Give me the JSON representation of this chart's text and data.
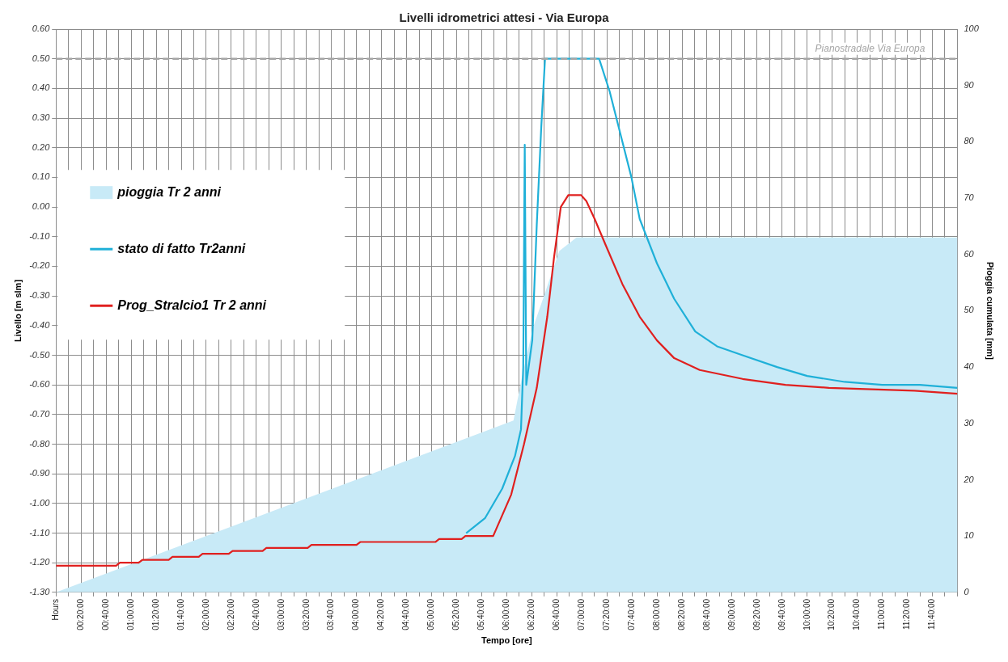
{
  "chart_data": {
    "type": "line",
    "title": "Livelli idrometrici attesi - Via Europa",
    "xlabel": "Tempo [ore]",
    "ylabel": "Livello [m slm]",
    "y2label": "Pioggia cumulata [mm]",
    "xlim": [
      0,
      12
    ],
    "xticks": [
      {
        "value": 0,
        "label": "Hours"
      },
      {
        "value": 0.1667,
        "label": null
      },
      {
        "value": 0.3333,
        "label": "00:20:00"
      },
      {
        "value": 0.5,
        "label": null
      },
      {
        "value": 0.6667,
        "label": "00:40:00"
      },
      {
        "value": 0.8333,
        "label": null
      },
      {
        "value": 1,
        "label": "01:00:00"
      },
      {
        "value": 1.1667,
        "label": null
      },
      {
        "value": 1.3333,
        "label": "01:20:00"
      },
      {
        "value": 1.5,
        "label": null
      },
      {
        "value": 1.6667,
        "label": "01:40:00"
      },
      {
        "value": 1.8333,
        "label": null
      },
      {
        "value": 2,
        "label": "02:00:00"
      },
      {
        "value": 2.1667,
        "label": null
      },
      {
        "value": 2.3333,
        "label": "02:20:00"
      },
      {
        "value": 2.5,
        "label": null
      },
      {
        "value": 2.6667,
        "label": "02:40:00"
      },
      {
        "value": 2.8333,
        "label": null
      },
      {
        "value": 3,
        "label": "03:00:00"
      },
      {
        "value": 3.1667,
        "label": null
      },
      {
        "value": 3.3333,
        "label": "03:20:00"
      },
      {
        "value": 3.5,
        "label": null
      },
      {
        "value": 3.6667,
        "label": "03:40:00"
      },
      {
        "value": 3.8333,
        "label": null
      },
      {
        "value": 4,
        "label": "04:00:00"
      },
      {
        "value": 4.1667,
        "label": null
      },
      {
        "value": 4.3333,
        "label": "04:20:00"
      },
      {
        "value": 4.5,
        "label": null
      },
      {
        "value": 4.6667,
        "label": "04:40:00"
      },
      {
        "value": 4.8333,
        "label": null
      },
      {
        "value": 5,
        "label": "05:00:00"
      },
      {
        "value": 5.1667,
        "label": null
      },
      {
        "value": 5.3333,
        "label": "05:20:00"
      },
      {
        "value": 5.5,
        "label": null
      },
      {
        "value": 5.6667,
        "label": "05:40:00"
      },
      {
        "value": 5.8333,
        "label": null
      },
      {
        "value": 6,
        "label": "06:00:00"
      },
      {
        "value": 6.1667,
        "label": null
      },
      {
        "value": 6.3333,
        "label": "06:20:00"
      },
      {
        "value": 6.5,
        "label": null
      },
      {
        "value": 6.6667,
        "label": "06:40:00"
      },
      {
        "value": 6.8333,
        "label": null
      },
      {
        "value": 7,
        "label": "07:00:00"
      },
      {
        "value": 7.1667,
        "label": null
      },
      {
        "value": 7.3333,
        "label": "07:20:00"
      },
      {
        "value": 7.5,
        "label": null
      },
      {
        "value": 7.6667,
        "label": "07:40:00"
      },
      {
        "value": 7.8333,
        "label": null
      },
      {
        "value": 8,
        "label": "08:00:00"
      },
      {
        "value": 8.1667,
        "label": null
      },
      {
        "value": 8.3333,
        "label": "08:20:00"
      },
      {
        "value": 8.5,
        "label": null
      },
      {
        "value": 8.6667,
        "label": "08:40:00"
      },
      {
        "value": 8.8333,
        "label": null
      },
      {
        "value": 9,
        "label": "09:00:00"
      },
      {
        "value": 9.1667,
        "label": null
      },
      {
        "value": 9.3333,
        "label": "09:20:00"
      },
      {
        "value": 9.5,
        "label": null
      },
      {
        "value": 9.6667,
        "label": "09:40:00"
      },
      {
        "value": 9.8333,
        "label": null
      },
      {
        "value": 10,
        "label": "10:00:00"
      },
      {
        "value": 10.1667,
        "label": null
      },
      {
        "value": 10.3333,
        "label": "10:20:00"
      },
      {
        "value": 10.5,
        "label": null
      },
      {
        "value": 10.6667,
        "label": "10:40:00"
      },
      {
        "value": 10.8333,
        "label": null
      },
      {
        "value": 11,
        "label": "11:00:00"
      },
      {
        "value": 11.1667,
        "label": null
      },
      {
        "value": 11.3333,
        "label": "11:20:00"
      },
      {
        "value": 11.5,
        "label": null
      },
      {
        "value": 11.6667,
        "label": "11:40:00"
      },
      {
        "value": 11.8333,
        "label": null
      },
      {
        "value": 12,
        "label": null
      }
    ],
    "ylim": [
      -1.3,
      0.6
    ],
    "yticks": [
      {
        "value": -1.3,
        "label": "-1.30"
      },
      {
        "value": -1.2,
        "label": "-1.20"
      },
      {
        "value": -1.1,
        "label": "-1.10"
      },
      {
        "value": -1.0,
        "label": "-1.00"
      },
      {
        "value": -0.9,
        "label": "-0.90"
      },
      {
        "value": -0.8,
        "label": "-0.80"
      },
      {
        "value": -0.7,
        "label": "-0.70"
      },
      {
        "value": -0.6,
        "label": "-0.60"
      },
      {
        "value": -0.5,
        "label": "-0.50"
      },
      {
        "value": -0.4,
        "label": "-0.40"
      },
      {
        "value": -0.3,
        "label": "-0.30"
      },
      {
        "value": -0.2,
        "label": "-0.20"
      },
      {
        "value": -0.1,
        "label": "-0.10"
      },
      {
        "value": 0,
        "label": "0.00"
      },
      {
        "value": 0.1,
        "label": "0.10"
      },
      {
        "value": 0.2,
        "label": "0.20"
      },
      {
        "value": 0.3,
        "label": "0.30"
      },
      {
        "value": 0.4,
        "label": "0.40"
      },
      {
        "value": 0.5,
        "label": "0.50"
      },
      {
        "value": 0.6,
        "label": "0.60"
      }
    ],
    "y2lim": [
      0,
      100
    ],
    "y2ticks": [
      0,
      10,
      20,
      30,
      40,
      50,
      60,
      70,
      80,
      90,
      100
    ],
    "grid": true,
    "legend": "left",
    "marker": "none",
    "line_style": "solid",
    "ref_lines": [
      {
        "axis": "y",
        "value": 0.5,
        "label": "Pianostradale Via Europa",
        "color": "#a6a6a6",
        "line_style": "dashed"
      }
    ],
    "series": [
      {
        "name": "pioggia Tr 2 anni",
        "type": "area",
        "axis": "y2",
        "color": "#c8eaf7",
        "x": [
          0,
          6.09,
          6.2,
          6.35,
          6.48,
          6.7,
          6.93,
          12
        ],
        "values": [
          0,
          30.5,
          38,
          47,
          52,
          60.6,
          63,
          63
        ]
      },
      {
        "name": "stato di fatto Tr2anni",
        "type": "line",
        "color": "#1fb0d8",
        "x": [
          5.46,
          5.71,
          5.94,
          6.11,
          6.19,
          6.22,
          6.24,
          6.26,
          6.34,
          6.4,
          6.46,
          6.51,
          7.23,
          7.37,
          7.52,
          7.66,
          7.77,
          8.0,
          8.23,
          8.51,
          8.8,
          9.14,
          9.6,
          10.0,
          10.5,
          11.0,
          11.5,
          12.0
        ],
        "values": [
          -1.1,
          -1.05,
          -0.95,
          -0.84,
          -0.75,
          -0.54,
          0.21,
          -0.6,
          -0.45,
          -0.06,
          0.27,
          0.5,
          0.5,
          0.39,
          0.24,
          0.1,
          -0.04,
          -0.19,
          -0.31,
          -0.42,
          -0.47,
          -0.5,
          -0.54,
          -0.57,
          -0.59,
          -0.6,
          -0.6,
          -0.61
        ]
      },
      {
        "name": "Prog_Stralcio1 Tr 2 anni",
        "type": "line",
        "color": "#e0201f",
        "x": [
          0,
          0.8,
          0.85,
          1.1,
          1.15,
          1.5,
          1.55,
          1.9,
          1.95,
          2.3,
          2.35,
          2.75,
          2.8,
          3.35,
          3.4,
          4.0,
          4.05,
          5.05,
          5.1,
          5.4,
          5.45,
          5.82,
          6.06,
          6.23,
          6.4,
          6.54,
          6.63,
          6.72,
          6.82,
          6.99,
          7.06,
          7.17,
          7.32,
          7.54,
          7.77,
          8.0,
          8.23,
          8.57,
          9.14,
          9.71,
          10.29,
          11.43,
          12.0
        ],
        "values": [
          -1.21,
          -1.21,
          -1.2,
          -1.2,
          -1.19,
          -1.19,
          -1.18,
          -1.18,
          -1.17,
          -1.17,
          -1.16,
          -1.16,
          -1.15,
          -1.15,
          -1.14,
          -1.14,
          -1.13,
          -1.13,
          -1.12,
          -1.12,
          -1.11,
          -1.11,
          -0.97,
          -0.8,
          -0.61,
          -0.37,
          -0.17,
          0.0,
          0.04,
          0.04,
          0.02,
          -0.04,
          -0.13,
          -0.26,
          -0.37,
          -0.45,
          -0.51,
          -0.55,
          -0.58,
          -0.6,
          -0.61,
          -0.62,
          -0.63
        ]
      }
    ]
  }
}
